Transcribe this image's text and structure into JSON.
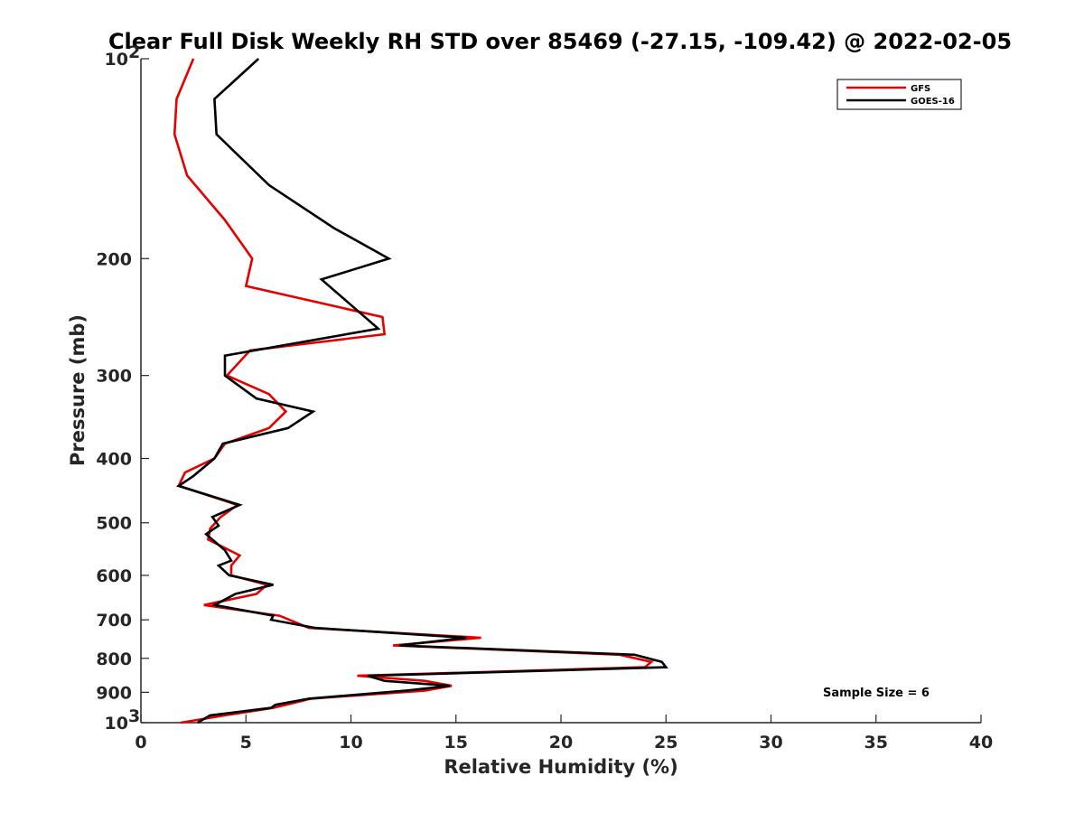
{
  "chart_data": {
    "type": "line",
    "title": "Clear Full Disk Weekly RH STD over 85469 (-27.15, -109.42) @ 2022-02-05",
    "xlabel": "Relative Humidity (%)",
    "ylabel": "Pressure (mb)",
    "xlim": [
      0,
      40
    ],
    "ylim": [
      100,
      1000
    ],
    "y_scale": "log",
    "y_reversed": true,
    "x_ticks": [
      "0",
      "5",
      "10",
      "15",
      "20",
      "25",
      "30",
      "35",
      "40"
    ],
    "y_ticks": [
      {
        "value": 100,
        "label": "10",
        "sup": "2"
      },
      {
        "value": 200,
        "label": "200",
        "sup": ""
      },
      {
        "value": 300,
        "label": "300",
        "sup": ""
      },
      {
        "value": 400,
        "label": "400",
        "sup": ""
      },
      {
        "value": 500,
        "label": "500",
        "sup": ""
      },
      {
        "value": 600,
        "label": "600",
        "sup": ""
      },
      {
        "value": 700,
        "label": "700",
        "sup": ""
      },
      {
        "value": 800,
        "label": "800",
        "sup": ""
      },
      {
        "value": 900,
        "label": "900",
        "sup": ""
      },
      {
        "value": 1000,
        "label": "10",
        "sup": "3"
      }
    ],
    "grid": false,
    "legend_position": "top-right",
    "series": [
      {
        "name": "GFS",
        "color": "#e60000",
        "points": [
          [
            2.5,
            100
          ],
          [
            1.7,
            115
          ],
          [
            1.6,
            130
          ],
          [
            2.2,
            150
          ],
          [
            4.0,
            175
          ],
          [
            5.3,
            200
          ],
          [
            5.0,
            220
          ],
          [
            11.5,
            245
          ],
          [
            11.6,
            260
          ],
          [
            5.2,
            275
          ],
          [
            4.1,
            300
          ],
          [
            6.1,
            320
          ],
          [
            6.9,
            340
          ],
          [
            6.1,
            360
          ],
          [
            4.0,
            380
          ],
          [
            3.5,
            400
          ],
          [
            2.1,
            420
          ],
          [
            1.8,
            440
          ],
          [
            4.6,
            470
          ],
          [
            3.8,
            490
          ],
          [
            3.3,
            510
          ],
          [
            3.2,
            530
          ],
          [
            4.7,
            560
          ],
          [
            4.3,
            580
          ],
          [
            4.3,
            600
          ],
          [
            6.0,
            620
          ],
          [
            5.5,
            640
          ],
          [
            3.0,
            665
          ],
          [
            6.6,
            690
          ],
          [
            8.0,
            720
          ],
          [
            16.2,
            745
          ],
          [
            12.0,
            765
          ],
          [
            22.8,
            790
          ],
          [
            24.3,
            810
          ],
          [
            24.0,
            825
          ],
          [
            10.3,
            850
          ],
          [
            13.5,
            865
          ],
          [
            14.8,
            880
          ],
          [
            13.5,
            895
          ],
          [
            8.1,
            920
          ],
          [
            7.5,
            930
          ],
          [
            6.3,
            950
          ],
          [
            4.0,
            975
          ],
          [
            1.9,
            1000
          ]
        ]
      },
      {
        "name": "GOES-16",
        "color": "#000000",
        "points": [
          [
            5.6,
            100
          ],
          [
            3.5,
            115
          ],
          [
            3.6,
            130
          ],
          [
            6.1,
            155
          ],
          [
            9.2,
            180
          ],
          [
            11.8,
            200
          ],
          [
            8.6,
            215
          ],
          [
            11.3,
            255
          ],
          [
            4.0,
            280
          ],
          [
            4.0,
            300
          ],
          [
            5.5,
            325
          ],
          [
            8.2,
            340
          ],
          [
            7.0,
            360
          ],
          [
            3.9,
            380
          ],
          [
            3.5,
            400
          ],
          [
            2.5,
            425
          ],
          [
            1.8,
            440
          ],
          [
            4.7,
            470
          ],
          [
            3.4,
            490
          ],
          [
            3.7,
            505
          ],
          [
            3.1,
            520
          ],
          [
            4.0,
            550
          ],
          [
            4.3,
            570
          ],
          [
            3.7,
            580
          ],
          [
            4.2,
            600
          ],
          [
            6.3,
            620
          ],
          [
            4.5,
            640
          ],
          [
            3.5,
            665
          ],
          [
            6.3,
            690
          ],
          [
            6.2,
            700
          ],
          [
            8.3,
            720
          ],
          [
            15.5,
            745
          ],
          [
            12.3,
            765
          ],
          [
            23.5,
            790
          ],
          [
            24.8,
            810
          ],
          [
            25.0,
            825
          ],
          [
            10.8,
            850
          ],
          [
            11.6,
            865
          ],
          [
            14.7,
            880
          ],
          [
            12.6,
            895
          ],
          [
            8.0,
            920
          ],
          [
            6.4,
            940
          ],
          [
            6.2,
            950
          ],
          [
            3.3,
            975
          ],
          [
            2.7,
            1000
          ]
        ]
      }
    ],
    "annotation": "Sample Size = 6"
  }
}
